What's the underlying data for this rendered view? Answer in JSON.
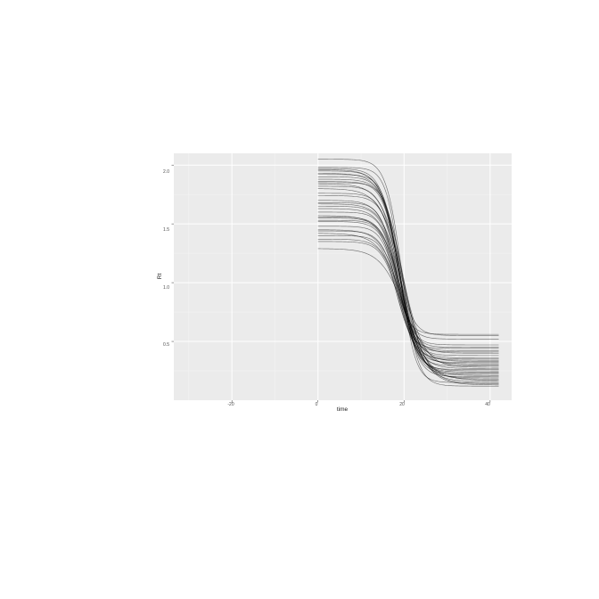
{
  "chart_data": {
    "type": "line",
    "xlabel": "time",
    "ylabel": "Rt",
    "xlim": [
      -33.5,
      45
    ],
    "ylim": [
      0,
      2.1
    ],
    "x_ticks": [
      -20,
      0,
      20,
      40
    ],
    "x_tick_labels": [
      "-20",
      "0",
      "20",
      "40"
    ],
    "y_ticks": [
      0.5,
      1.0,
      1.5,
      2.0
    ],
    "y_tick_labels": [
      "0.5",
      "1.0",
      "1.5",
      "2.0"
    ],
    "grid": true,
    "legend": "none",
    "line_color": "#000000",
    "panel_color": "#ebebeb",
    "curve_model": {
      "x_start": 0,
      "x_end": 42,
      "description": "y = y_end + (y_start - y_end) / (1 + exp(rate * (x - midpoint)))"
    },
    "series": [
      {
        "y_start": 2.05,
        "y_end": 0.12,
        "midpoint": 19.5,
        "rate": 0.55
      },
      {
        "y_start": 1.98,
        "y_end": 0.15,
        "midpoint": 19.2,
        "rate": 0.6
      },
      {
        "y_start": 1.97,
        "y_end": 0.22,
        "midpoint": 18.8,
        "rate": 0.5
      },
      {
        "y_start": 1.96,
        "y_end": 0.3,
        "midpoint": 19.0,
        "rate": 0.45
      },
      {
        "y_start": 1.95,
        "y_end": 0.4,
        "midpoint": 18.5,
        "rate": 0.5
      },
      {
        "y_start": 1.93,
        "y_end": 0.18,
        "midpoint": 19.8,
        "rate": 0.42
      },
      {
        "y_start": 1.92,
        "y_end": 0.26,
        "midpoint": 18.9,
        "rate": 0.55
      },
      {
        "y_start": 1.9,
        "y_end": 0.55,
        "midpoint": 18.2,
        "rate": 0.55
      },
      {
        "y_start": 1.88,
        "y_end": 0.33,
        "midpoint": 19.4,
        "rate": 0.48
      },
      {
        "y_start": 1.86,
        "y_end": 0.2,
        "midpoint": 19.1,
        "rate": 0.52
      },
      {
        "y_start": 1.85,
        "y_end": 0.45,
        "midpoint": 18.6,
        "rate": 0.6
      },
      {
        "y_start": 1.84,
        "y_end": 0.28,
        "midpoint": 19.6,
        "rate": 0.4
      },
      {
        "y_start": 1.82,
        "y_end": 0.36,
        "midpoint": 18.7,
        "rate": 0.5
      },
      {
        "y_start": 1.8,
        "y_end": 0.14,
        "midpoint": 20.0,
        "rate": 0.38
      },
      {
        "y_start": 1.76,
        "y_end": 0.42,
        "midpoint": 18.4,
        "rate": 0.55
      },
      {
        "y_start": 1.74,
        "y_end": 0.24,
        "midpoint": 19.3,
        "rate": 0.5
      },
      {
        "y_start": 1.7,
        "y_end": 0.31,
        "midpoint": 18.9,
        "rate": 0.47
      },
      {
        "y_start": 1.68,
        "y_end": 0.52,
        "midpoint": 18.0,
        "rate": 0.58
      },
      {
        "y_start": 1.67,
        "y_end": 0.19,
        "midpoint": 19.7,
        "rate": 0.44
      },
      {
        "y_start": 1.65,
        "y_end": 0.38,
        "midpoint": 18.6,
        "rate": 0.52
      },
      {
        "y_start": 1.63,
        "y_end": 0.27,
        "midpoint": 19.2,
        "rate": 0.46
      },
      {
        "y_start": 1.6,
        "y_end": 0.47,
        "midpoint": 18.3,
        "rate": 0.56
      },
      {
        "y_start": 1.57,
        "y_end": 0.16,
        "midpoint": 19.9,
        "rate": 0.4
      },
      {
        "y_start": 1.56,
        "y_end": 0.34,
        "midpoint": 18.8,
        "rate": 0.5
      },
      {
        "y_start": 1.55,
        "y_end": 0.23,
        "midpoint": 19.4,
        "rate": 0.48
      },
      {
        "y_start": 1.53,
        "y_end": 0.56,
        "midpoint": 17.8,
        "rate": 0.6
      },
      {
        "y_start": 1.52,
        "y_end": 0.29,
        "midpoint": 19.0,
        "rate": 0.5
      },
      {
        "y_start": 1.48,
        "y_end": 0.41,
        "midpoint": 18.5,
        "rate": 0.55
      },
      {
        "y_start": 1.45,
        "y_end": 0.21,
        "midpoint": 19.6,
        "rate": 0.42
      },
      {
        "y_start": 1.44,
        "y_end": 0.35,
        "midpoint": 18.7,
        "rate": 0.52
      },
      {
        "y_start": 1.42,
        "y_end": 0.13,
        "midpoint": 20.2,
        "rate": 0.36
      },
      {
        "y_start": 1.4,
        "y_end": 0.44,
        "midpoint": 18.2,
        "rate": 0.58
      },
      {
        "y_start": 1.37,
        "y_end": 0.25,
        "midpoint": 19.3,
        "rate": 0.47
      },
      {
        "y_start": 1.35,
        "y_end": 0.32,
        "midpoint": 18.9,
        "rate": 0.5
      },
      {
        "y_start": 1.29,
        "y_end": 0.17,
        "midpoint": 20.5,
        "rate": 0.35
      }
    ]
  }
}
